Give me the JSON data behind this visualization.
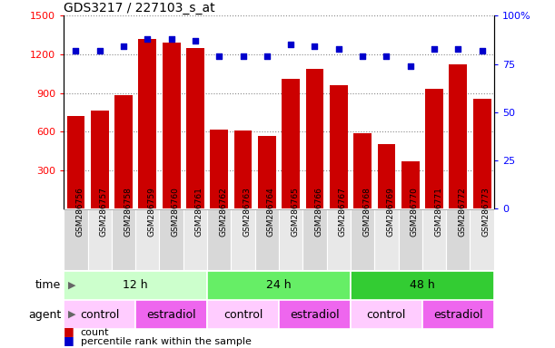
{
  "title": "GDS3217 / 227103_s_at",
  "samples": [
    "GSM286756",
    "GSM286757",
    "GSM286758",
    "GSM286759",
    "GSM286760",
    "GSM286761",
    "GSM286762",
    "GSM286763",
    "GSM286764",
    "GSM286765",
    "GSM286766",
    "GSM286767",
    "GSM286768",
    "GSM286769",
    "GSM286770",
    "GSM286771",
    "GSM286772",
    "GSM286773"
  ],
  "counts": [
    720,
    760,
    880,
    1320,
    1290,
    1250,
    615,
    605,
    565,
    1010,
    1090,
    960,
    590,
    500,
    370,
    930,
    1120,
    855
  ],
  "percentile_ranks": [
    82,
    82,
    84,
    88,
    88,
    87,
    79,
    79,
    79,
    85,
    84,
    83,
    79,
    79,
    74,
    83,
    83,
    82
  ],
  "bar_color": "#cc0000",
  "dot_color": "#0000cc",
  "ylim_left": [
    0,
    1500
  ],
  "ylim_right": [
    0,
    100
  ],
  "yticks_left": [
    300,
    600,
    900,
    1200,
    1500
  ],
  "yticks_right": [
    0,
    25,
    50,
    75,
    100
  ],
  "ytick_right_labels": [
    "0",
    "25",
    "50",
    "75",
    "100%"
  ],
  "time_groups": [
    {
      "label": "12 h",
      "start": 0,
      "end": 6,
      "color": "#ccffcc"
    },
    {
      "label": "24 h",
      "start": 6,
      "end": 12,
      "color": "#66ee66"
    },
    {
      "label": "48 h",
      "start": 12,
      "end": 18,
      "color": "#33cc33"
    }
  ],
  "agent_groups": [
    {
      "label": "control",
      "start": 0,
      "end": 3,
      "color": "#ffccff"
    },
    {
      "label": "estradiol",
      "start": 3,
      "end": 6,
      "color": "#ee66ee"
    },
    {
      "label": "control",
      "start": 6,
      "end": 9,
      "color": "#ffccff"
    },
    {
      "label": "estradiol",
      "start": 9,
      "end": 12,
      "color": "#ee66ee"
    },
    {
      "label": "control",
      "start": 12,
      "end": 15,
      "color": "#ffccff"
    },
    {
      "label": "estradiol",
      "start": 15,
      "end": 18,
      "color": "#ee66ee"
    }
  ],
  "legend_count_label": "count",
  "legend_percentile_label": "percentile rank within the sample",
  "time_label": "time",
  "agent_label": "agent",
  "stripe_colors": [
    "#d8d8d8",
    "#e8e8e8"
  ],
  "grid_color": "#888888"
}
